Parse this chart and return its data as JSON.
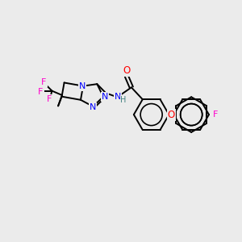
{
  "background_color": "#ebebeb",
  "atom_colors": {
    "N": "#0000ff",
    "O": "#ff0000",
    "F": "#ff00cc",
    "C": "#000000",
    "H": "#408080"
  },
  "bond_lw": 1.4,
  "font_size": 7.5,
  "figsize": [
    3.0,
    3.0
  ],
  "dpi": 100,
  "xlim": [
    0,
    300
  ],
  "ylim": [
    0,
    300
  ]
}
